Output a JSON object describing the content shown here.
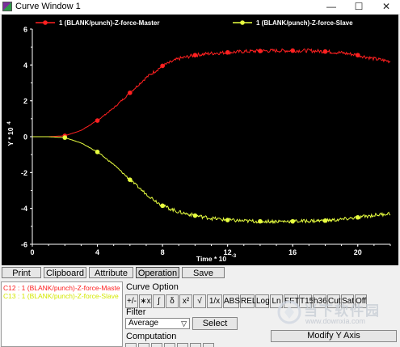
{
  "window": {
    "title": "Curve Window 1",
    "minimize_label": "—",
    "maximize_label": "☐",
    "close_label": "✕"
  },
  "chart_data": {
    "type": "line",
    "xlabel": "Time * 10",
    "xlabel_exp": "-3",
    "ylabel": "Y * 10",
    "ylabel_exp": "4",
    "xlim": [
      0,
      22
    ],
    "ylim": [
      -6,
      6
    ],
    "xticks": [
      0,
      4,
      8,
      12,
      16,
      20
    ],
    "yticks": [
      -6,
      -4,
      -2,
      0,
      2,
      4,
      6
    ],
    "grid": false,
    "legend_position": "top",
    "series": [
      {
        "name": "1 (BLANK/punch)-Z-force-Master",
        "color": "#ff2020",
        "x": [
          0,
          1,
          2,
          3,
          4,
          5,
          6,
          7,
          8,
          9,
          10,
          11,
          12,
          13,
          14,
          15,
          16,
          17,
          18,
          19,
          20,
          21,
          22
        ],
        "y": [
          0,
          0,
          0.05,
          0.35,
          0.9,
          1.6,
          2.45,
          3.3,
          3.95,
          4.35,
          4.55,
          4.65,
          4.7,
          4.75,
          4.78,
          4.8,
          4.8,
          4.8,
          4.75,
          4.68,
          4.55,
          4.35,
          4.2
        ],
        "markers_x": [
          2,
          4,
          6,
          8,
          10,
          12,
          14,
          16,
          18,
          20
        ]
      },
      {
        "name": "1 (BLANK/punch)-Z-force-Slave",
        "color": "#e8ff40",
        "x": [
          0,
          1,
          2,
          3,
          4,
          5,
          6,
          7,
          8,
          9,
          10,
          11,
          12,
          13,
          14,
          15,
          16,
          17,
          18,
          19,
          20,
          21,
          22
        ],
        "y": [
          0,
          0,
          -0.05,
          -0.35,
          -0.85,
          -1.55,
          -2.4,
          -3.2,
          -3.85,
          -4.2,
          -4.4,
          -4.55,
          -4.65,
          -4.7,
          -4.72,
          -4.72,
          -4.72,
          -4.7,
          -4.68,
          -4.62,
          -4.5,
          -4.38,
          -4.28
        ],
        "markers_x": [
          2,
          4,
          6,
          8,
          10,
          12,
          14,
          16,
          18,
          20
        ]
      }
    ]
  },
  "toolbar": {
    "print": "Print",
    "clipboard": "Clipboard",
    "attribute": "Attribute",
    "operation": "Operation",
    "save": "Save"
  },
  "curve_list": [
    {
      "label": "C12 : 1 (BLANK/punch)-Z-force-Master",
      "color": "#ff2020"
    },
    {
      "label": "C13 : 1 (BLANK/punch)-Z-force-Slave",
      "color": "#e8ff40"
    }
  ],
  "curve_option": {
    "title": "Curve Option",
    "ops": [
      "+/-",
      "∗x",
      "∫",
      "δ",
      "x²",
      "√",
      "1/x",
      "ABS",
      "REL",
      "Log",
      "Ln",
      "FFT",
      "T15",
      "h36",
      "Cut",
      "Sat",
      "Off"
    ]
  },
  "filter": {
    "title": "Filter",
    "value": "Average",
    "select_label": "Select"
  },
  "computation": {
    "title": "Computation"
  },
  "modify_y_axis": "Modify Y Axis",
  "watermark": {
    "text": "当下软件园",
    "url": "www.downxia.com"
  }
}
